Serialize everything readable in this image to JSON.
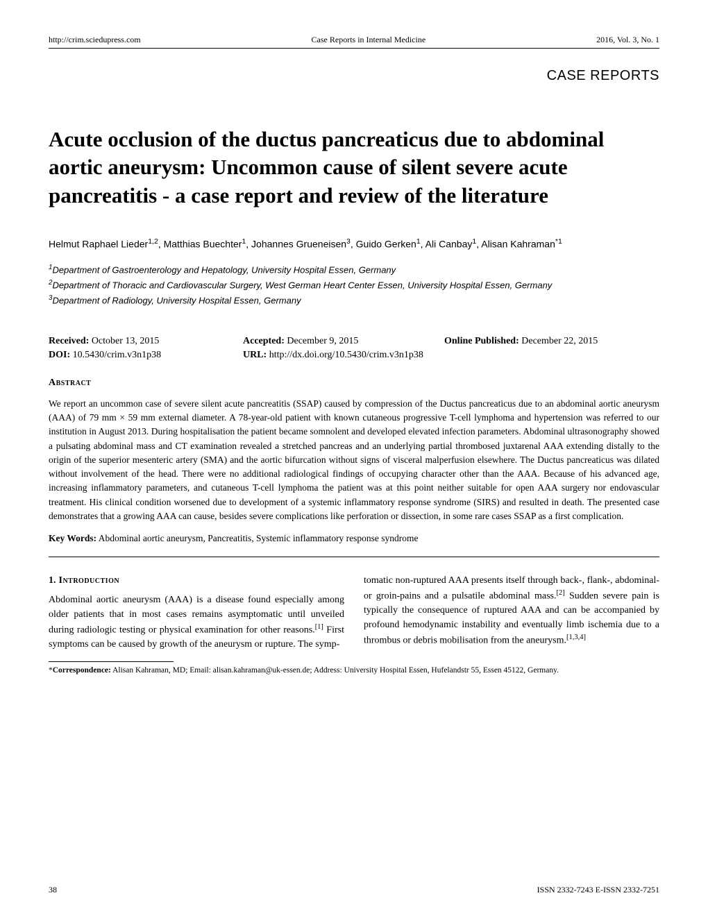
{
  "header": {
    "url": "http://crim.sciedupress.com",
    "journal": "Case Reports in Internal Medicine",
    "issue": "2016, Vol. 3, No. 1"
  },
  "section_label": "CASE REPORTS",
  "title": "Acute occlusion of the ductus pancreaticus due to abdominal aortic aneurysm: Uncommon cause of silent severe acute pancreatitis - a case report and review of the literature",
  "authors_html": "Helmut Raphael Lieder<sup>1,2</sup>, Matthias Buechter<sup>1</sup>, Johannes Grueneisen<sup>3</sup>, Guido Gerken<sup>1</sup>, Ali Canbay<sup>1</sup>, Alisan Kahraman<sup>*1</sup>",
  "affiliations": [
    {
      "num": "1",
      "text": "Department of Gastroenterology and Hepatology, University Hospital Essen, Germany"
    },
    {
      "num": "2",
      "text": "Department of Thoracic and Cardiovascular Surgery, West German Heart Center Essen, University Hospital Essen, Germany"
    },
    {
      "num": "3",
      "text": "Department of Radiology, University Hospital Essen, Germany"
    }
  ],
  "dates": {
    "received_label": "Received:",
    "received_value": " October 13, 2015",
    "accepted_label": "Accepted:",
    "accepted_value": " December 9, 2015",
    "online_label": "Online Published:",
    "online_value": " December 22, 2015",
    "doi_label": "DOI:",
    "doi_value": " 10.5430/crim.v3n1p38",
    "url_label": "URL:",
    "url_value": " http://dx.doi.org/10.5430/crim.v3n1p38"
  },
  "abstract_heading": "Abstract",
  "abstract_text": "We report an uncommon case of severe silent acute pancreatitis (SSAP) caused by compression of the Ductus pancreaticus due to an abdominal aortic aneurysm (AAA) of 79 mm × 59 mm external diameter. A 78-year-old patient with known cutaneous progressive T-cell lymphoma and hypertension was referred to our institution in August 2013. During hospitalisation the patient became somnolent and developed elevated infection parameters. Abdominal ultrasonography showed a pulsating abdominal mass and CT examination revealed a stretched pancreas and an underlying partial thrombosed juxtarenal AAA extending distally to the origin of the superior mesenteric artery (SMA) and the aortic bifurcation without signs of visceral malperfusion elsewhere. The Ductus pancreaticus was dilated without involvement of the head. There were no additional radiological findings of occupying character other than the AAA. Because of his advanced age, increasing inflammatory parameters, and cutaneous T-cell lymphoma the patient was at this point neither suitable for open AAA surgery nor endovascular treatment. His clinical condition worsened due to development of a systemic inflammatory response syndrome (SIRS) and resulted in death. The presented case demonstrates that a growing AAA can cause, besides severe complications like perforation or dissection, in some rare cases SSAP as a first complication.",
  "keywords_label": "Key Words:",
  "keywords_value": " Abdominal aortic aneurysm, Pancreatitis, Systemic inflammatory response syndrome",
  "intro_heading_num": "1.",
  "intro_heading_word": " Introduction",
  "intro_col1": "Abdominal aortic aneurysm (AAA) is a disease found especially among older patients that in most cases remains asymptomatic until unveiled during radiologic testing or physical examination for other reasons.[1] First symptoms can be caused by growth of the aneurysm or rupture. The symp-",
  "intro_col2": "tomatic non-ruptured AAA presents itself through back-, flank-, abdominal- or groin-pains and a pulsatile abdominal mass.[2] Sudden severe pain is typically the consequence of ruptured AAA and can be accompanied by profound hemodynamic instability and eventually limb ischemia due to a thrombus or debris mobilisation from the aneurysm.[1,3,4]",
  "footnote_html": "*<b>Correspondence:</b> Alisan Kahraman, MD; Email: alisan.kahraman@uk-essen.de; Address: University Hospital Essen, Hufelandstr 55, Essen 45122, Germany.",
  "footer": {
    "page": "38",
    "issn": "ISSN 2332-7243   E-ISSN 2332-7251"
  }
}
